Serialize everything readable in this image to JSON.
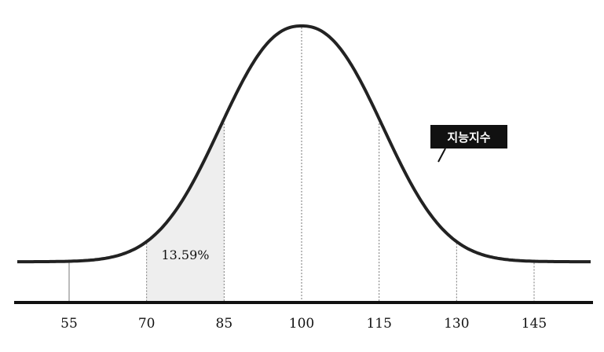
{
  "chart_data": {
    "type": "area",
    "distribution": "normal",
    "mean": 100,
    "sd": 15,
    "x_ticks": [
      55,
      70,
      85,
      100,
      115,
      130,
      145
    ],
    "tick_labels": [
      "55",
      "70",
      "85",
      "100",
      "115",
      "130",
      "145"
    ],
    "xlim": [
      50,
      155
    ],
    "shaded_region": {
      "from": 70,
      "to": 85,
      "label": "13.59%"
    },
    "curve_label": "지능지수",
    "grid": "vertical dashed lines at ticks",
    "colors": {
      "curve": "#222222",
      "shade": "#eeeeee",
      "axis": "#111111",
      "label_box": "#111111"
    }
  }
}
